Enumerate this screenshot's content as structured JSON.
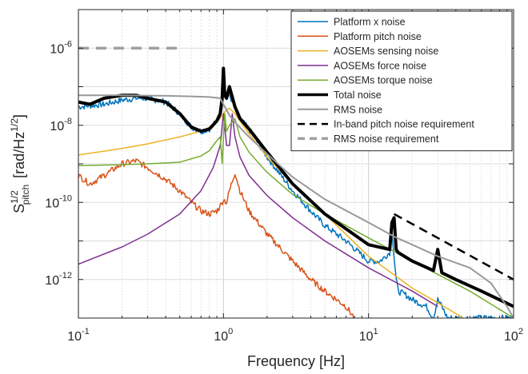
{
  "chart_data": {
    "type": "line",
    "xlabel": "Frequency [Hz]",
    "ylabel_main": "S",
    "ylabel_sup": "1/2",
    "ylabel_sub": "pitch",
    "ylabel_unit": "[rad/Hz",
    "ylabel_unit_sup": "1/2",
    "ylabel_unit_end": "]",
    "x_scale": "log",
    "y_scale": "log",
    "xlim": [
      0.1,
      100
    ],
    "ylim": [
      1e-13,
      1e-05
    ],
    "grid": true,
    "legend_position": "top-right",
    "x_ticks": [
      {
        "value": 0.1,
        "base": "10",
        "exp": "-1"
      },
      {
        "value": 1,
        "base": "10",
        "exp": "0"
      },
      {
        "value": 10,
        "base": "10",
        "exp": "1"
      },
      {
        "value": 100,
        "base": "10",
        "exp": "2"
      }
    ],
    "y_ticks": [
      {
        "value": 1e-12,
        "base": "10",
        "exp": "-12"
      },
      {
        "value": 1e-10,
        "base": "10",
        "exp": "-10"
      },
      {
        "value": 1e-08,
        "base": "10",
        "exp": "-8"
      },
      {
        "value": 1e-06,
        "base": "10",
        "exp": "-6"
      }
    ],
    "series": [
      {
        "name": "Platform x noise",
        "color": "#0072BD",
        "width": 1.5,
        "dash": "",
        "noisy": true,
        "x": [
          0.1,
          0.15,
          0.2,
          0.25,
          0.3,
          0.4,
          0.5,
          0.6,
          0.7,
          0.8,
          0.9,
          0.95,
          0.98,
          1.0,
          1.05,
          1.1,
          1.2,
          1.3,
          1.5,
          2,
          3,
          4,
          5,
          7,
          10,
          12,
          14,
          14.5,
          15,
          15.5,
          16,
          18,
          20,
          25,
          28,
          30,
          32,
          35,
          40,
          60,
          100
        ],
        "y": [
          3e-08,
          3.5e-08,
          4.5e-08,
          5e-08,
          5e-08,
          4e-08,
          2e-08,
          9e-09,
          7e-09,
          8e-09,
          1.3e-08,
          2e-08,
          5e-08,
          2e-07,
          5e-08,
          6e-08,
          3e-08,
          1.5e-08,
          8e-09,
          1.5e-09,
          2e-10,
          6e-11,
          2.5e-11,
          1e-11,
          3e-12,
          3e-12,
          5e-12,
          2e-11,
          4e-12,
          1e-12,
          5e-13,
          4e-13,
          3e-13,
          2e-13,
          1e-13,
          3e-13,
          2e-13,
          1e-13,
          1e-13,
          1e-13,
          1e-13
        ]
      },
      {
        "name": "Platform pitch noise",
        "color": "#D95319",
        "width": 1.5,
        "dash": "",
        "noisy": true,
        "x": [
          0.1,
          0.12,
          0.15,
          0.2,
          0.25,
          0.3,
          0.4,
          0.5,
          0.6,
          0.7,
          0.8,
          0.9,
          0.95,
          1.0,
          1.05,
          1.1,
          1.2,
          1.3,
          1.5,
          2,
          3,
          4,
          5,
          7,
          8
        ],
        "y": [
          5e-10,
          3e-10,
          5e-10,
          1e-09,
          1.2e-09,
          8e-10,
          4e-10,
          2e-10,
          1e-10,
          6e-11,
          5e-11,
          6e-11,
          8e-11,
          1.2e-10,
          1e-10,
          2e-10,
          6e-10,
          2e-10,
          6e-11,
          1.5e-11,
          3e-12,
          1e-12,
          5e-13,
          2e-13,
          1e-13
        ]
      },
      {
        "name": "AOSEMs sensing noise",
        "color": "#EDB120",
        "width": 1.5,
        "dash": "",
        "x": [
          0.1,
          0.2,
          0.3,
          0.5,
          0.7,
          0.8,
          0.9,
          0.95,
          1.0,
          1.05,
          1.1,
          1.2,
          1.3,
          1.5,
          2,
          3,
          5,
          10,
          20,
          30,
          45
        ],
        "y": [
          1.7e-09,
          2.5e-09,
          3.3e-09,
          5e-09,
          7e-09,
          9e-09,
          1.2e-08,
          1.5e-08,
          2e-08,
          2.5e-08,
          2.8e-08,
          2e-08,
          1.3e-08,
          6e-09,
          1.5e-09,
          3e-10,
          5e-11,
          4e-12,
          6e-13,
          2.5e-13,
          1e-13
        ]
      },
      {
        "name": "AOSEMs force noise",
        "color": "#7E2F8E",
        "width": 1.5,
        "dash": "",
        "x": [
          0.1,
          0.2,
          0.3,
          0.5,
          0.7,
          0.85,
          0.95,
          1.0,
          1.05,
          1.1,
          1.15,
          1.2,
          1.3,
          1.5,
          2,
          3,
          5,
          10,
          20,
          30
        ],
        "y": [
          2.5e-12,
          7e-12,
          1.5e-11,
          5e-11,
          2e-10,
          8e-10,
          3e-09,
          2e-08,
          3e-09,
          3e-09,
          2e-08,
          5e-09,
          1.5e-09,
          5e-10,
          1.5e-10,
          4e-11,
          1e-11,
          2e-12,
          5e-13,
          2e-13
        ]
      },
      {
        "name": "AOSEMs torque noise",
        "color": "#77AC30",
        "width": 1.5,
        "dash": "",
        "x": [
          0.1,
          0.2,
          0.3,
          0.5,
          0.7,
          0.8,
          0.9,
          0.95,
          0.98,
          1.0,
          1.02,
          1.05,
          1.1,
          1.2,
          1.3,
          1.5,
          2,
          3,
          5,
          10,
          20,
          50,
          100
        ],
        "y": [
          9e-10,
          9.5e-10,
          1e-09,
          1.1e-09,
          1.6e-09,
          2.2e-09,
          4e-09,
          5e-09,
          1e-09,
          5e-09,
          2e-08,
          7e-09,
          1e-08,
          1.5e-08,
          5e-09,
          2e-09,
          6e-10,
          1.6e-10,
          5e-11,
          1.2e-11,
          3e-12,
          5e-13,
          1e-13
        ]
      },
      {
        "name": "Total noise",
        "color": "#000000",
        "width": 4,
        "dash": "",
        "x": [
          0.1,
          0.12,
          0.15,
          0.2,
          0.25,
          0.3,
          0.4,
          0.5,
          0.6,
          0.7,
          0.8,
          0.9,
          0.95,
          0.98,
          1.0,
          1.02,
          1.05,
          1.1,
          1.2,
          1.3,
          1.5,
          2,
          3,
          5,
          10,
          14,
          14.5,
          15,
          15.5,
          16,
          20,
          28,
          30,
          32,
          40,
          60,
          100
        ],
        "y": [
          4e-08,
          3.5e-08,
          5e-08,
          6e-08,
          6e-08,
          5e-08,
          4e-08,
          2e-08,
          9e-09,
          7e-09,
          8e-09,
          1.3e-08,
          2e-08,
          5e-08,
          3e-07,
          6e-08,
          5e-08,
          1e-07,
          3e-08,
          1.5e-08,
          8e-09,
          2e-09,
          3e-10,
          5e-11,
          8e-12,
          6e-12,
          3e-11,
          4e-11,
          6e-12,
          5e-12,
          3e-12,
          1.7e-12,
          6e-12,
          1.5e-12,
          1e-12,
          5e-13,
          2e-13
        ]
      },
      {
        "name": "RMS noise",
        "color": "#999999",
        "width": 2,
        "dash": "",
        "x": [
          0.1,
          0.2,
          0.4,
          0.6,
          0.8,
          0.95,
          1.0,
          1.05,
          1.1,
          1.2,
          1.5,
          2,
          3,
          5,
          10,
          15,
          20,
          30,
          50,
          70,
          90,
          100
        ],
        "y": [
          6e-08,
          6e-08,
          5.8e-08,
          5.6e-08,
          5.4e-08,
          5e-08,
          3.5e-08,
          2.5e-08,
          1.8e-08,
          1.2e-08,
          5e-09,
          1.8e-09,
          4.5e-10,
          1.2e-10,
          3e-11,
          1.3e-11,
          8e-12,
          4e-12,
          2e-12,
          8e-13,
          2e-13,
          1e-13
        ]
      },
      {
        "name": "In-band pitch noise requirement",
        "color": "#000000",
        "width": 2.5,
        "dash": "11,7",
        "x": [
          15,
          100
        ],
        "y": [
          5e-11,
          1e-12
        ]
      },
      {
        "name": "RMS noise requirement",
        "color": "#a0a0a0",
        "width": 3.5,
        "dash": "13,9",
        "x": [
          0.1,
          0.5
        ],
        "y": [
          1e-06,
          1e-06
        ]
      }
    ]
  }
}
